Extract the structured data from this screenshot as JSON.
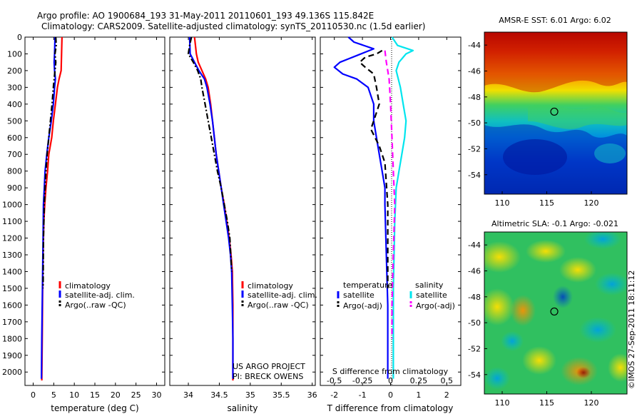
{
  "header": {
    "line1": "Argo profile: AO 1900684_193 31-May-2011 20110601_193 49.136S 115.842E",
    "line2": "Climatology: CARS2009. Satellite-adjusted climatology: synTS_20110530.nc (1.5d earlier)"
  },
  "colors": {
    "climatology": "#ff0000",
    "satellite": "#0000ff",
    "argo": "#000000",
    "sat_salinity": "#00e5ee",
    "argo_salinity": "#ff00ff"
  },
  "footer_text": {
    "project": "US ARGO PROJECT",
    "pi": "PI: BRECK OWENS",
    "imos_stamp": "©IMOS 27-Sep-2011 18:11:12"
  },
  "chart_data": [
    {
      "type": "line",
      "id": "temperature",
      "xlabel": "temperature (deg C)",
      "ylabel": "",
      "xlim": [
        -2,
        32
      ],
      "ylim": [
        2080,
        0
      ],
      "xticks": [
        0,
        5,
        10,
        15,
        20,
        25,
        30
      ],
      "yticks": [
        0,
        100,
        200,
        300,
        400,
        500,
        600,
        700,
        800,
        900,
        1000,
        1100,
        1200,
        1300,
        1400,
        1500,
        1600,
        1700,
        1800,
        1900,
        2000
      ],
      "legend": {
        "placement": "middle",
        "entries": [
          "climatology",
          "satellite-adj. clim.",
          "Argo(..raw -QC)"
        ]
      },
      "series": [
        {
          "name": "climatology",
          "color": "#ff0000",
          "style": "solid",
          "x": [
            7.0,
            6.9,
            6.8,
            6.3,
            5.9,
            5.4,
            4.9,
            4.5,
            3.8,
            3.5,
            3.1,
            2.8,
            2.6,
            2.5,
            2.4,
            2.3,
            2.2,
            2.1
          ],
          "y": [
            0,
            100,
            200,
            250,
            300,
            400,
            500,
            600,
            700,
            800,
            900,
            1000,
            1100,
            1200,
            1300,
            1500,
            1800,
            2050
          ]
        },
        {
          "name": "satellite-adj. clim.",
          "color": "#0000ff",
          "style": "solid",
          "x": [
            5.3,
            5.2,
            5.1,
            5.2,
            5.4,
            5.2,
            4.9,
            4.4,
            3.8,
            3.3,
            2.9,
            2.7,
            2.5,
            2.4,
            2.3,
            2.2,
            2.1,
            2.0
          ],
          "y": [
            0,
            100,
            150,
            200,
            250,
            300,
            400,
            500,
            600,
            700,
            800,
            900,
            1000,
            1200,
            1400,
            1600,
            1800,
            2040
          ]
        },
        {
          "name": "Argo(..raw -QC)",
          "color": "#000000",
          "style": "dashdot",
          "x": [
            5.5,
            5.6,
            5.3,
            5.5,
            5.3,
            5.1,
            4.9,
            4.6,
            4.2,
            3.8,
            3.4,
            3.1,
            2.9,
            2.7,
            2.5,
            2.4
          ],
          "y": [
            0,
            50,
            100,
            150,
            200,
            250,
            300,
            400,
            500,
            600,
            700,
            800,
            900,
            1000,
            1200,
            1500
          ]
        }
      ]
    },
    {
      "type": "line",
      "id": "salinity",
      "xlabel": "salinity",
      "xlim": [
        33.7,
        36.05
      ],
      "ylim": [
        2080,
        0
      ],
      "xticks": [
        34,
        34.5,
        35,
        35.5,
        36
      ],
      "legend": {
        "placement": "middle",
        "entries": [
          "climatology",
          "satellite-adj. clim.",
          "Argo(..raw -QC)"
        ]
      },
      "series": [
        {
          "name": "climatology",
          "color": "#ff0000",
          "style": "solid",
          "x": [
            34.1,
            34.13,
            34.16,
            34.22,
            34.28,
            34.32,
            34.36,
            34.39,
            34.42,
            34.45,
            34.49,
            34.53,
            34.58,
            34.62,
            34.66,
            34.69,
            34.71,
            34.72,
            34.72,
            34.72
          ],
          "y": [
            0,
            100,
            150,
            200,
            250,
            300,
            400,
            500,
            600,
            700,
            800,
            900,
            1000,
            1100,
            1200,
            1300,
            1400,
            1600,
            1800,
            2050
          ]
        },
        {
          "name": "satellite-adj. clim.",
          "color": "#0000ff",
          "style": "solid",
          "x": [
            34.02,
            34.03,
            34.1,
            34.17,
            34.26,
            34.3,
            34.35,
            34.39,
            34.42,
            34.45,
            34.49,
            34.53,
            34.57,
            34.61,
            34.65,
            34.68,
            34.7,
            34.71,
            34.72,
            34.72
          ],
          "y": [
            0,
            100,
            150,
            200,
            250,
            300,
            400,
            500,
            600,
            700,
            800,
            900,
            1000,
            1100,
            1200,
            1300,
            1400,
            1600,
            1800,
            2040
          ]
        },
        {
          "name": "Argo(..raw -QC)",
          "color": "#000000",
          "style": "dashdot",
          "x": [
            34.05,
            34.02,
            34.0,
            34.08,
            34.15,
            34.2,
            34.22,
            34.27,
            34.32,
            34.37,
            34.42,
            34.47,
            34.53,
            34.58,
            34.63,
            34.67,
            34.7
          ],
          "y": [
            0,
            50,
            100,
            150,
            200,
            250,
            300,
            400,
            500,
            600,
            700,
            800,
            900,
            1000,
            1100,
            1200,
            1400
          ]
        }
      ]
    },
    {
      "type": "line",
      "id": "difference",
      "xlabel": "T difference from climatology",
      "x2label": "S difference from climatology",
      "xlim": [
        -2.5,
        2.5
      ],
      "ylim": [
        2080,
        0
      ],
      "xticks": [
        -2,
        -1,
        0,
        1,
        2
      ],
      "x2ticks": [
        "-0.5",
        "-0.25",
        "0",
        "0.25",
        "0.5"
      ],
      "legend": {
        "placement": "middle",
        "entries": [
          "temperature",
          "satellite",
          "Argo(-adj)",
          "salinity",
          "satellite",
          "Argo(-adj)"
        ]
      },
      "series": [
        {
          "name": "temperature satellite",
          "color": "#0000ff",
          "style": "solid",
          "x": [
            -1.5,
            -1.3,
            -0.6,
            -1.2,
            -1.5,
            -1.8,
            -2.0,
            -1.7,
            -1.2,
            -0.8,
            -0.6,
            -0.6,
            -0.5,
            -0.4,
            -0.3,
            -0.2,
            -0.2,
            -0.15,
            -0.1,
            -0.1
          ],
          "y": [
            0,
            30,
            70,
            110,
            130,
            150,
            180,
            220,
            250,
            300,
            400,
            500,
            600,
            700,
            800,
            900,
            1000,
            1300,
            1600,
            2040
          ]
        },
        {
          "name": "temperature Argo(-adj)",
          "color": "#000000",
          "style": "dashed",
          "x": [
            -0.3,
            -0.5,
            -0.9,
            -1.1,
            -0.9,
            -0.6,
            -0.5,
            -0.4,
            -0.6,
            -0.7,
            -0.4,
            -0.2,
            -0.1,
            -0.1
          ],
          "y": [
            80,
            100,
            120,
            150,
            180,
            220,
            300,
            400,
            500,
            550,
            650,
            750,
            1000,
            1500
          ]
        },
        {
          "name": "salinity satellite",
          "color": "#00e5ee",
          "style": "solid",
          "x": [
            0.05,
            0.25,
            0.8,
            0.55,
            0.3,
            0.2,
            0.35,
            0.45,
            0.55,
            0.5,
            0.4,
            0.3,
            0.2,
            0.15,
            0.1,
            0.1
          ],
          "y": [
            0,
            50,
            80,
            100,
            150,
            200,
            300,
            400,
            500,
            600,
            700,
            800,
            900,
            1100,
            1500,
            2040
          ]
        },
        {
          "name": "salinity Argo(-adj)",
          "color": "#ff00ff",
          "style": "dashed",
          "x": [
            -0.2,
            -0.15,
            -0.05,
            0.0,
            0.05,
            0.1,
            0.15,
            0.1,
            0.05,
            0.05
          ],
          "y": [
            80,
            150,
            250,
            400,
            600,
            800,
            1000,
            1300,
            1600,
            1800
          ]
        }
      ]
    },
    {
      "type": "heatmap",
      "id": "sst-map",
      "title": "AMSR-E SST: 6.01  Argo: 6.02",
      "xlim": [
        108,
        124
      ],
      "ylim": [
        -55.5,
        -43
      ],
      "xticks": [
        110,
        115,
        120
      ],
      "yticks": [
        -44,
        -46,
        -48,
        -50,
        -52,
        -54
      ],
      "marker": {
        "x": 115.842,
        "y": -49.136
      }
    },
    {
      "type": "heatmap",
      "id": "sla-map",
      "title": "Altimetric SLA: -0.1  Argo: -0.021",
      "xlim": [
        108,
        124
      ],
      "ylim": [
        -55.5,
        -43
      ],
      "xticks": [
        110,
        115,
        120
      ],
      "yticks": [
        -44,
        -46,
        -48,
        -50,
        -52,
        -54
      ],
      "marker": {
        "x": 115.842,
        "y": -49.136
      }
    }
  ]
}
